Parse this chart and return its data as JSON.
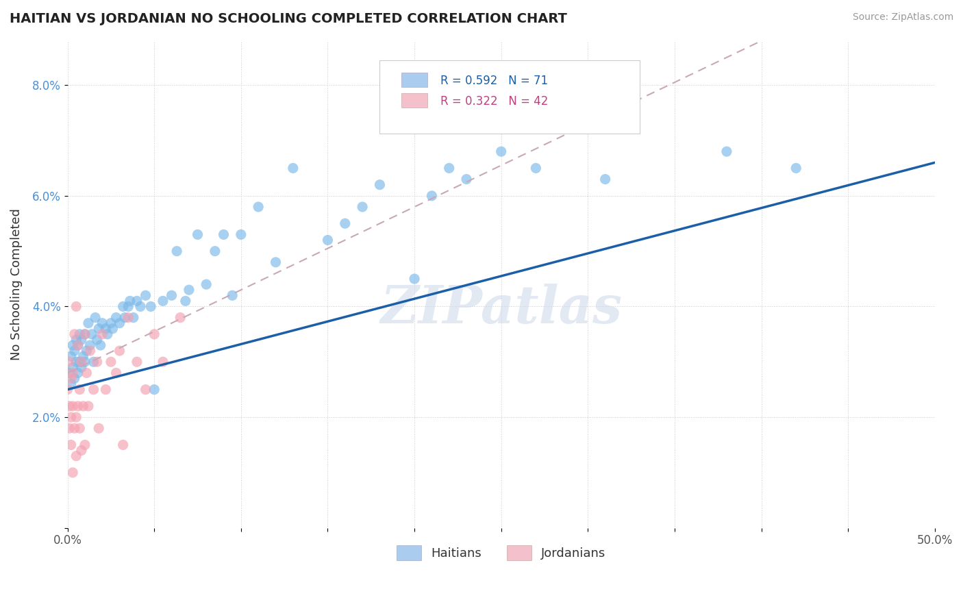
{
  "title": "HAITIAN VS JORDANIAN NO SCHOOLING COMPLETED CORRELATION CHART",
  "source": "Source: ZipAtlas.com",
  "ylabel": "No Schooling Completed",
  "xlabel": "",
  "xlim": [
    0.0,
    0.5
  ],
  "ylim": [
    0.0,
    0.088
  ],
  "xtick_labels": [
    "0.0%",
    "",
    "",
    "",
    "",
    "",
    "",
    "",
    "",
    "",
    "50.0%"
  ],
  "ytick_labels": [
    "",
    "2.0%",
    "4.0%",
    "6.0%",
    "8.0%"
  ],
  "haitian_scatter_color": "#7ab8e8",
  "jordanian_scatter_color": "#f4a0b0",
  "line_haitian_color": "#1a5fa8",
  "line_jordanian_color": "#c8a0b0",
  "R_haitian": 0.592,
  "N_haitian": 71,
  "R_jordanian": 0.322,
  "N_jordanian": 42,
  "watermark": "ZIPatlas",
  "legend_haitian_color": "#aaccee",
  "legend_jordanian_color": "#f4c0cc"
}
